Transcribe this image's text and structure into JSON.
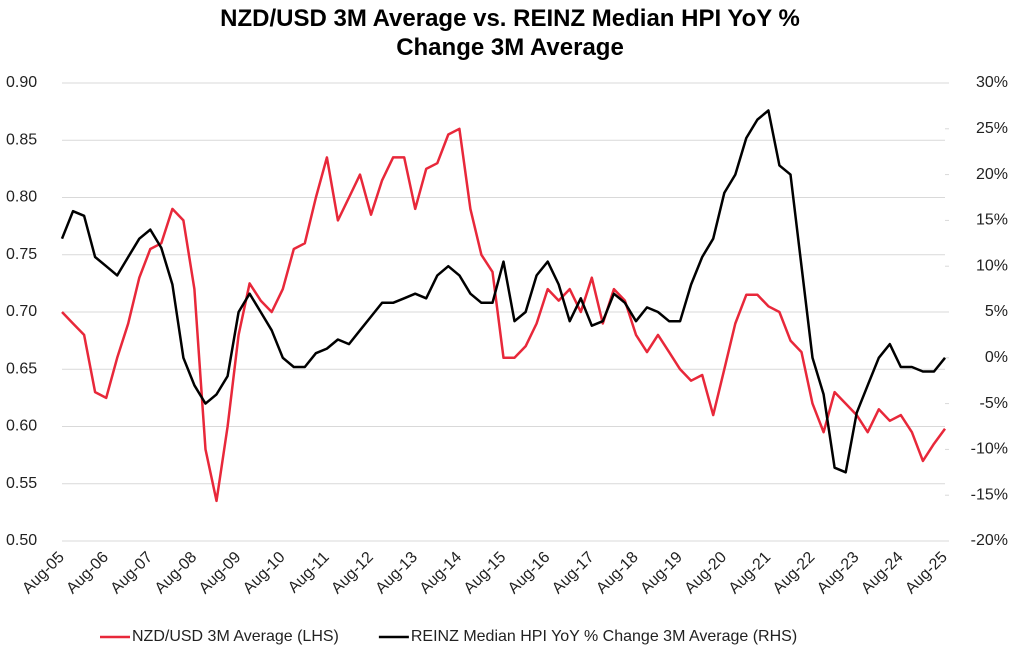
{
  "chart_data": {
    "type": "line",
    "title": "NZD/USD 3M Average vs. REINZ Median HPI YoY % Change 3M Average",
    "categories": [
      "Aug-05",
      null,
      null,
      null,
      "Aug-06",
      null,
      null,
      null,
      "Aug-07",
      null,
      null,
      null,
      "Aug-08",
      null,
      null,
      null,
      "Aug-09",
      null,
      null,
      null,
      "Aug-10",
      null,
      null,
      null,
      "Aug-11",
      null,
      null,
      null,
      "Aug-12",
      null,
      null,
      null,
      "Aug-13",
      null,
      null,
      null,
      "Aug-14",
      null,
      null,
      null,
      "Aug-15",
      null,
      null,
      null,
      "Aug-16",
      null,
      null,
      null,
      "Aug-17",
      null,
      null,
      null,
      "Aug-18",
      null,
      null,
      null,
      "Aug-19",
      null,
      null,
      null,
      "Aug-20",
      null,
      null,
      null,
      "Aug-21",
      null,
      null,
      null,
      "Aug-22",
      null,
      null,
      null,
      "Aug-23",
      null,
      null,
      null,
      "Aug-24",
      null,
      null,
      null,
      "Aug-25"
    ],
    "series": [
      {
        "name": "NZD/USD 3M Average (LHS)",
        "color": "#e8283a",
        "axis": "y",
        "values": [
          0.7,
          0.69,
          0.68,
          0.63,
          0.625,
          0.66,
          0.69,
          0.73,
          0.755,
          0.76,
          0.79,
          0.78,
          0.72,
          0.58,
          0.535,
          0.6,
          0.68,
          0.725,
          0.71,
          0.7,
          0.72,
          0.755,
          0.76,
          0.8,
          0.835,
          0.78,
          0.8,
          0.82,
          0.785,
          0.815,
          0.835,
          0.835,
          0.79,
          0.825,
          0.83,
          0.855,
          0.86,
          0.79,
          0.75,
          0.735,
          0.66,
          0.66,
          0.67,
          0.69,
          0.72,
          0.71,
          0.72,
          0.7,
          0.73,
          0.69,
          0.72,
          0.71,
          0.68,
          0.665,
          0.68,
          0.665,
          0.65,
          0.64,
          0.645,
          0.61,
          0.65,
          0.69,
          0.715,
          0.715,
          0.705,
          0.7,
          0.675,
          0.665,
          0.62,
          0.595,
          0.63,
          0.62,
          0.61,
          0.595,
          0.615,
          0.605,
          0.61,
          0.595,
          0.57,
          0.585,
          0.598
        ]
      },
      {
        "name": "REINZ Median HPI YoY % Change 3M Average (RHS)",
        "color": "#000000",
        "axis": "y2",
        "values": [
          13,
          16,
          15.5,
          11,
          10,
          9,
          11,
          13,
          14,
          12,
          8,
          0,
          -3,
          -5,
          -4,
          -2,
          5,
          7,
          5,
          3,
          0,
          -1,
          -1,
          0.5,
          1,
          2,
          1.5,
          3,
          4.5,
          6,
          6,
          6.5,
          7,
          6.5,
          9,
          10,
          9,
          7,
          6,
          6,
          10.5,
          4,
          5,
          9,
          10.5,
          8,
          4,
          6.5,
          3.5,
          4,
          7,
          6,
          4,
          5.5,
          5,
          4,
          4,
          8,
          11,
          13,
          18,
          20,
          24,
          26,
          27,
          21,
          20,
          10,
          0,
          -4,
          -12,
          -12.5,
          -6,
          -3,
          0,
          1.5,
          -1,
          -1,
          -1.5,
          -1.5,
          0
        ]
      }
    ],
    "ylim": [
      0.5,
      0.9
    ],
    "yticks": [
      {
        "value": 0.5,
        "label": "0.50"
      },
      0.55,
      {
        "value": 0.6,
        "label": "0.60"
      },
      0.65,
      {
        "value": 0.7,
        "label": "0.70"
      },
      0.75,
      {
        "value": 0.8,
        "label": "0.80"
      },
      0.85,
      {
        "value": 0.9,
        "label": "0.90"
      }
    ],
    "y2lim": [
      -20,
      30
    ],
    "y2ticks": [
      {
        "value": -20,
        "label": "-20%"
      },
      {
        "value": -15,
        "label": "-15%"
      },
      {
        "value": -10,
        "label": "-10%"
      },
      {
        "value": -5,
        "label": "-5%"
      },
      {
        "value": 0,
        "label": "0%"
      },
      {
        "value": 5,
        "label": "5%"
      },
      {
        "value": 10,
        "label": "10%"
      },
      {
        "value": 15,
        "label": "15%"
      },
      {
        "value": 20,
        "label": "20%"
      },
      {
        "value": 25,
        "label": "25%"
      },
      {
        "value": 30,
        "label": "30%"
      }
    ],
    "grid": true,
    "legend": "bottom"
  }
}
